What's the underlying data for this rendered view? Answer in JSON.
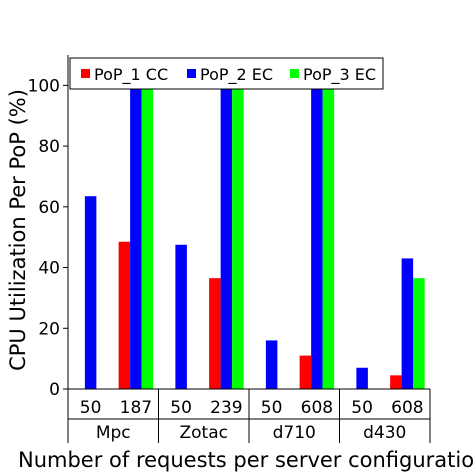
{
  "chart_data": {
    "type": "bar",
    "title": "",
    "xlabel": "Number of requests per server configuration",
    "ylabel": "CPU Utilization Per PoP (%)",
    "ylim": [
      0,
      110
    ],
    "yticks": [
      0,
      20,
      40,
      60,
      80,
      100
    ],
    "grid": false,
    "legend_position": "top",
    "groups": [
      {
        "name": "Mpc",
        "subcategories": [
          {
            "label": "50",
            "values": [
              null,
              63.5,
              null
            ]
          },
          {
            "label": "187",
            "values": [
              48.5,
              99,
              99
            ]
          }
        ]
      },
      {
        "name": "Zotac",
        "subcategories": [
          {
            "label": "50",
            "values": [
              null,
              47.5,
              null
            ]
          },
          {
            "label": "239",
            "values": [
              36.5,
              99,
              99
            ]
          }
        ]
      },
      {
        "name": "d710",
        "subcategories": [
          {
            "label": "50",
            "values": [
              null,
              16,
              null
            ]
          },
          {
            "label": "608",
            "values": [
              11,
              99.5,
              99.5
            ]
          }
        ]
      },
      {
        "name": "d430",
        "subcategories": [
          {
            "label": "50",
            "values": [
              null,
              7,
              null
            ]
          },
          {
            "label": "608",
            "values": [
              4.5,
              43,
              36.5
            ]
          }
        ]
      }
    ],
    "series": [
      {
        "name": "PoP_1 CC",
        "color": "#ff0000"
      },
      {
        "name": "PoP_2 EC",
        "color": "#0000ff"
      },
      {
        "name": "PoP_3 EC",
        "color": "#00ff00"
      }
    ]
  }
}
